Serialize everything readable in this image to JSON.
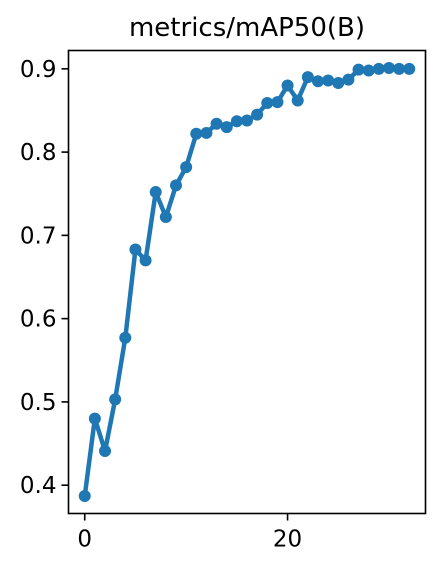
{
  "chart_data": {
    "type": "line",
    "title": "metrics/mAP50(B)",
    "xlabel": "",
    "ylabel": "",
    "xlim": [
      -1.6,
      33.6
    ],
    "ylim": [
      0.366,
      0.922
    ],
    "xticks": [
      0,
      20
    ],
    "xtick_labels": [
      "0",
      "20"
    ],
    "yticks": [
      0.4,
      0.5,
      0.6,
      0.7,
      0.8,
      0.9
    ],
    "ytick_labels": [
      "0.4",
      "0.5",
      "0.6",
      "0.7",
      "0.8",
      "0.9"
    ],
    "grid": false,
    "series": [
      {
        "color": "#1f77b4",
        "marker": "circle",
        "x": [
          0,
          1,
          2,
          3,
          4,
          5,
          6,
          7,
          8,
          9,
          10,
          11,
          12,
          13,
          14,
          15,
          16,
          17,
          18,
          19,
          20,
          21,
          22,
          23,
          24,
          25,
          26,
          27,
          28,
          29,
          30,
          31,
          32
        ],
        "y": [
          0.387,
          0.48,
          0.441,
          0.503,
          0.577,
          0.683,
          0.67,
          0.752,
          0.722,
          0.76,
          0.782,
          0.822,
          0.823,
          0.834,
          0.83,
          0.837,
          0.838,
          0.845,
          0.859,
          0.86,
          0.88,
          0.862,
          0.89,
          0.885,
          0.886,
          0.883,
          0.887,
          0.899,
          0.898,
          0.9,
          0.901,
          0.9,
          0.9
        ]
      }
    ]
  }
}
